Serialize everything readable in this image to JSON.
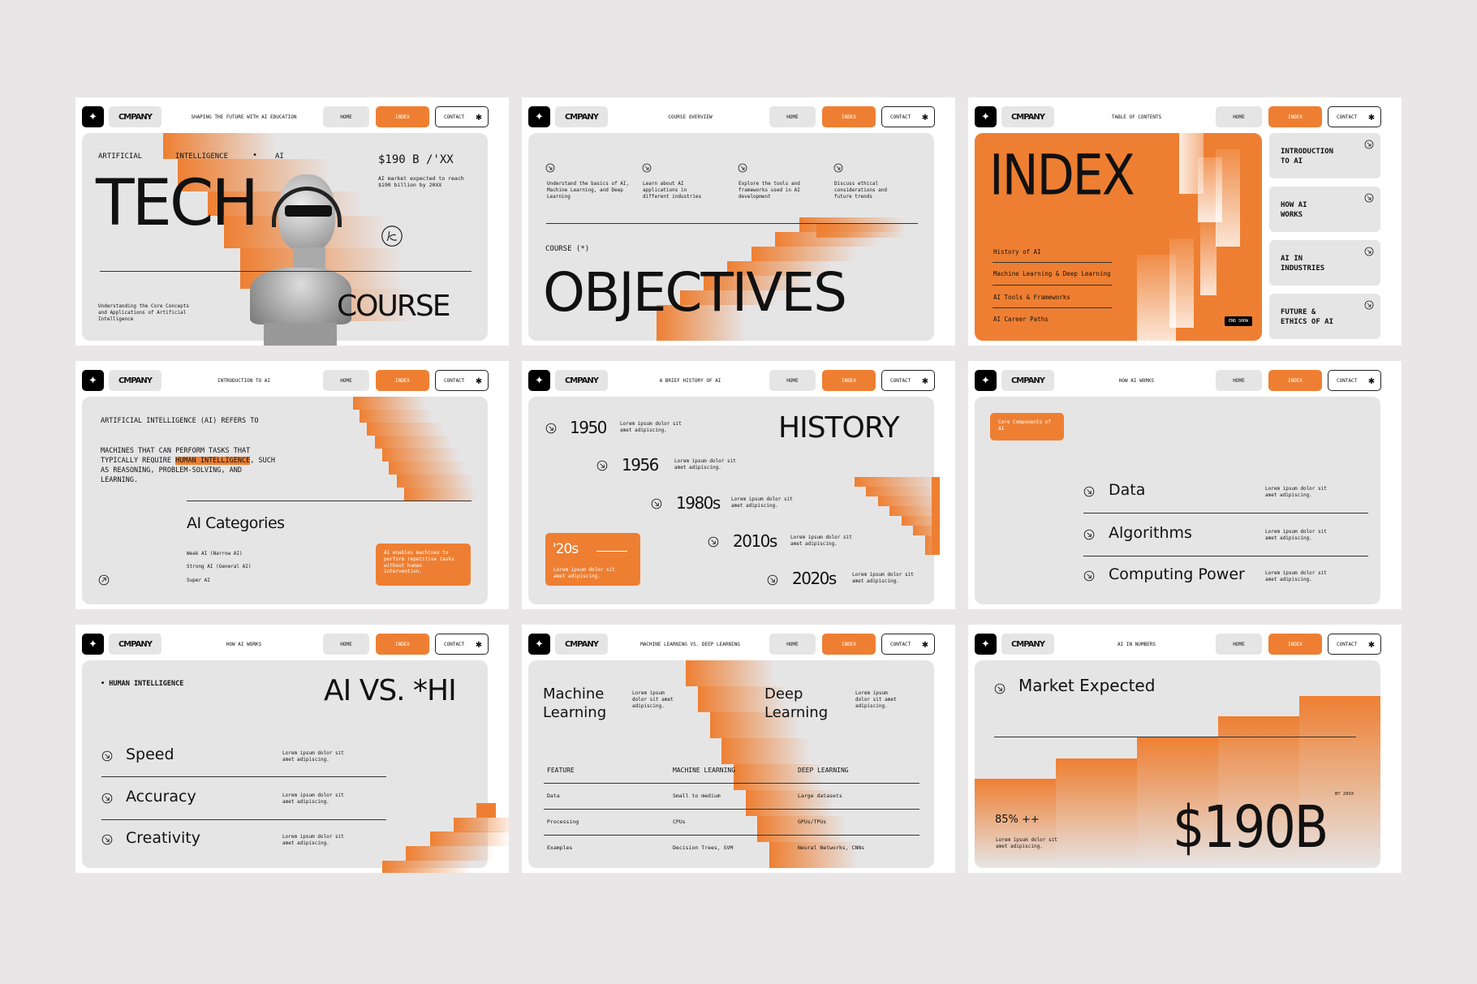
{
  "brand": {
    "company": "CMPANY",
    "logo_icon": "sparkle-icon",
    "accent": "#ee7f32",
    "panel": "#e6e5e6",
    "background": "#e8e6e7"
  },
  "nav": {
    "home": "HOME",
    "index": "INDEX",
    "contact": "CONTACT",
    "contact_icon": "asterisk-icon"
  },
  "slides": [
    {
      "subtitle": "SHAPING THE FUTURE WITH AI EDUCATION",
      "tags": [
        "ARTIFICIAL",
        "INTELLIGENCE",
        "•",
        "AI"
      ],
      "title_top": "TECH",
      "title_bottom": "COURSE",
      "stat": "$190 B /'XX",
      "stat_caption": "AI market expected to reach $190 billion by 20XX",
      "description": "Understanding the Core Concepts and Applications of Artificial Intelligence"
    },
    {
      "subtitle": "COURSE OVERVIEW",
      "objectives": [
        "Understand the basics of AI, Machine Learning, and Deep Learning",
        "Learn about AI applications in different industries",
        "Explore the tools and frameworks used in AI development",
        "Discuss ethical considerations and future trends"
      ],
      "label": "COURSE (*)",
      "title": "OBJECTIVES"
    },
    {
      "subtitle": "TABLE OF CONTENTS",
      "title": "INDEX",
      "items": [
        "History of AI",
        "Machine Learning & Deep Learning",
        "AI Tools & Frameworks",
        "AI Career Paths"
      ],
      "end_show": "END SHOW",
      "cards": [
        "INTRODUCTION\nTO AI",
        "HOW AI\nWORKS",
        "AI IN\nINDUSTRIES",
        "FUTURE &\nETHICS OF AI"
      ]
    },
    {
      "subtitle": "INTRODUCTION TO AI",
      "intro_1": "ARTIFICIAL INTELLIGENCE (AI) REFERS TO",
      "intro_2a": "MACHINES THAT CAN PERFORM TASKS THAT TYPICALLY REQUIRE ",
      "intro_highlight": "HUMAN INTELLIGENCE",
      "intro_2b": ", SUCH AS REASONING, PROBLEM-SOLVING, AND LEARNING.",
      "heading": "AI Categories",
      "categories": [
        "Weak AI (Narrow AI)",
        "Strong AI (General AI)",
        "Super AI"
      ],
      "note": "AI enables machines to perform repetitive tasks without human intervention."
    },
    {
      "subtitle": "A BRIEF HISTORY OF AI",
      "title": "HISTORY",
      "timeline": [
        {
          "year": "1950",
          "text": "Lorem ipsum dolor sit amet adipiscing."
        },
        {
          "year": "1956",
          "text": "Lorem ipsum dolor sit amet adipiscing."
        },
        {
          "year": "1980s",
          "text": "Lorem ipsum dolor sit amet adipiscing."
        },
        {
          "year": "2010s",
          "text": "Lorem ipsum dolor sit amet adipiscing."
        },
        {
          "year": "2020s",
          "text": "Lorem ipsum dolor sit amet adipiscing."
        }
      ],
      "callout_year": "'20s",
      "callout_text": "Lorem ipsum dolor sit amet adipiscing."
    },
    {
      "subtitle": "HOW AI WORKS",
      "label": "Core Components of AI",
      "rows": [
        {
          "title": "Data",
          "text": "Lorem ipsum dolor sit amet adipiscing."
        },
        {
          "title": "Algorithms",
          "text": "Lorem ipsum dolor sit amet adipiscing."
        },
        {
          "title": "Computing Power",
          "text": "Lorem ipsum dolor sit amet adipiscing."
        }
      ]
    },
    {
      "subtitle": "HOW AI WORKS",
      "label": "• HUMAN INTELLIGENCE",
      "title": "AI VS. *HI",
      "rows": [
        {
          "title": "Speed",
          "text": "Lorem ipsum dolor sit amet adipiscing."
        },
        {
          "title": "Accuracy",
          "text": "Lorem ipsum dolor sit amet adipiscing."
        },
        {
          "title": "Creativity",
          "text": "Lorem ipsum dolor sit amet adipiscing."
        }
      ]
    },
    {
      "subtitle": "MACHINE LEARNING VS. DEEP LEARNING",
      "left_title": "Machine Learning",
      "left_text": "Lorem ipsum dolor sit amet adipiscing.",
      "right_title": "Deep Learning",
      "right_text": "Lorem ipsum dolor sit amet adipiscing.",
      "table": {
        "headers": [
          "FEATURE",
          "MACHINE LEARNING",
          "DEEP LEARNING"
        ],
        "rows": [
          [
            "Data",
            "Small to medium",
            "Large datasets"
          ],
          [
            "Processing",
            "CPUs",
            "GPUs/TPUs"
          ],
          [
            "Examples",
            "Decision Trees, SVM",
            "Neural Networks, CNNs"
          ]
        ]
      }
    },
    {
      "subtitle": "AI IN NUMBERS",
      "title": "Market Expected",
      "percent": "85% ++",
      "percent_text": "Lorem ipsum dolor sit amet adipiscing.",
      "by": "BY 20XX",
      "value": "$190B"
    }
  ]
}
